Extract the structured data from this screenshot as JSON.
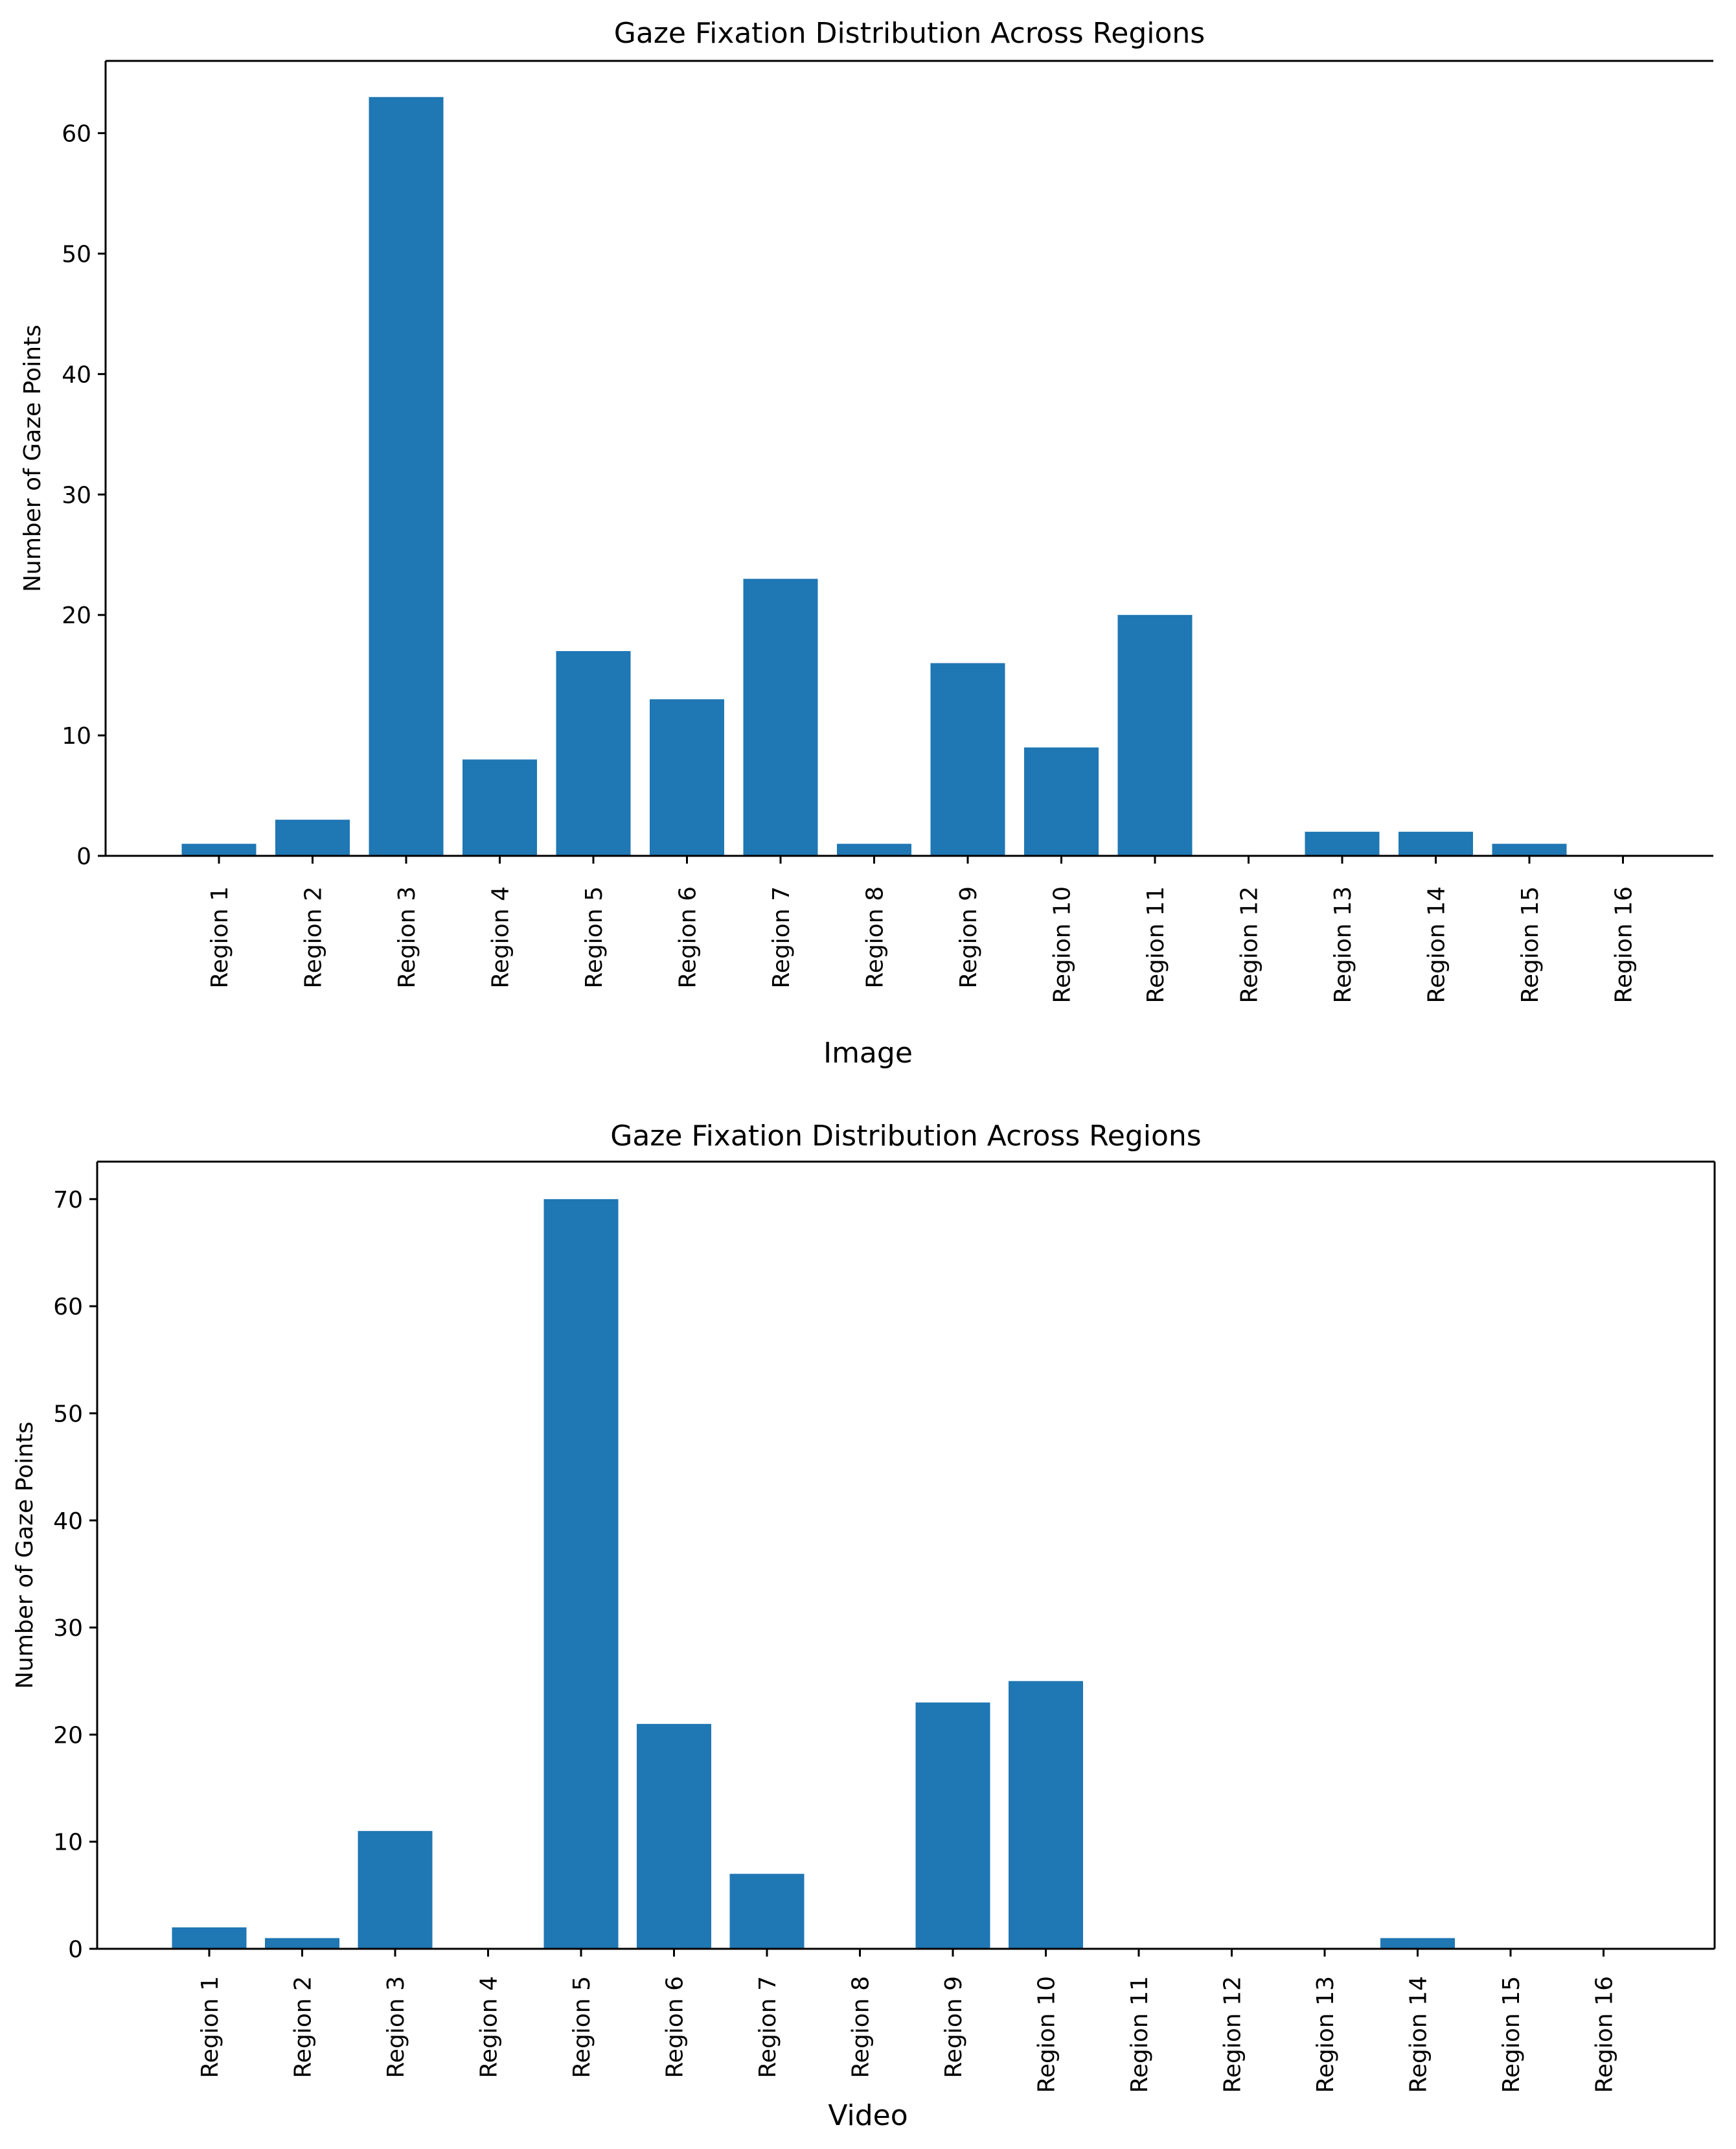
{
  "figure": {
    "image_caption": "Image",
    "video_caption": "Video"
  },
  "colors": {
    "bar": "#1f77b4",
    "axis": "#000000",
    "background": "#ffffff"
  },
  "chart_data": [
    {
      "type": "bar",
      "title": "Gaze Fixation Distribution Across Regions",
      "xlabel": "",
      "ylabel": "Number of Gaze Points",
      "categories": [
        "Region 1",
        "Region 2",
        "Region 3",
        "Region 4",
        "Region 5",
        "Region 6",
        "Region 7",
        "Region 8",
        "Region 9",
        "Region 10",
        "Region 11",
        "Region 12",
        "Region 13",
        "Region 14",
        "Region 15",
        "Region 16"
      ],
      "values": [
        1,
        3,
        63,
        8,
        17,
        13,
        23,
        1,
        16,
        9,
        20,
        0,
        2,
        2,
        1,
        0
      ],
      "ylim": [
        0,
        66
      ],
      "yticks": [
        0,
        10,
        20,
        30,
        40,
        50,
        60
      ],
      "grid": false,
      "frame": "left-bottom-top"
    },
    {
      "type": "bar",
      "title": "Gaze Fixation Distribution Across Regions",
      "xlabel": "",
      "ylabel": "Number of Gaze Points",
      "categories": [
        "Region 1",
        "Region 2",
        "Region 3",
        "Region 4",
        "Region 5",
        "Region 6",
        "Region 7",
        "Region 8",
        "Region 9",
        "Region 10",
        "Region 11",
        "Region 12",
        "Region 13",
        "Region 14",
        "Region 15",
        "Region 16"
      ],
      "values": [
        2,
        1,
        11,
        0,
        70,
        21,
        7,
        0,
        23,
        25,
        0,
        0,
        0,
        1,
        0,
        0
      ],
      "ylim": [
        0,
        73.5
      ],
      "yticks": [
        0,
        10,
        20,
        30,
        40,
        50,
        60,
        70
      ],
      "grid": false,
      "frame": "box"
    }
  ]
}
